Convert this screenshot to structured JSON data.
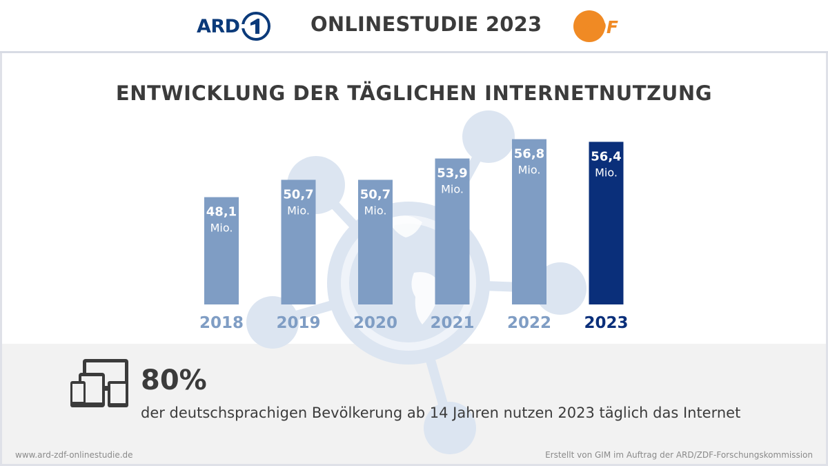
{
  "header": {
    "ard_logo_text": "ARD",
    "title": "ONLINESTUDIE 2023",
    "zdf_logo_text": "ZDF"
  },
  "colors": {
    "bar_default": "#7f9dc4",
    "bar_highlight": "#0a2f7a",
    "year_default": "#7f9dc4",
    "year_highlight": "#0a2f7a"
  },
  "chart_data": {
    "type": "bar",
    "title": "ENTWICKLUNG DER TÄGLICHEN INTERNETNUTZUNG",
    "categories": [
      "2018",
      "2019",
      "2020",
      "2021",
      "2022",
      "2023"
    ],
    "values": [
      48.1,
      50.7,
      50.7,
      53.9,
      56.8,
      56.4
    ],
    "value_labels": [
      "48,1",
      "50,7",
      "50,7",
      "53,9",
      "56,8",
      "56,4"
    ],
    "unit_label": "Mio.",
    "highlight_index": 5,
    "ylim": [
      32,
      58
    ],
    "xlabel": "",
    "ylabel": "",
    "grid": false
  },
  "stat": {
    "value": "80%",
    "description": "der deutschsprachigen Bevölkerung ab 14 Jahren nutzen 2023 täglich das Internet"
  },
  "footer": {
    "left": "www.ard-zdf-onlinestudie.de",
    "right": "Erstellt von GIM im Auftrag der ARD/ZDF-Forschungskommission"
  }
}
